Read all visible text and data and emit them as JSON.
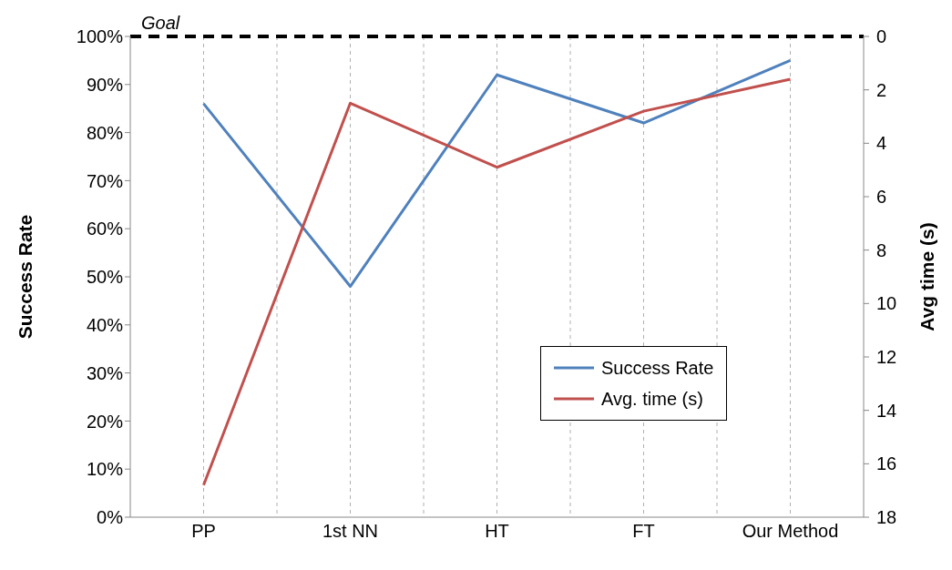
{
  "chart_data": {
    "type": "line",
    "categories": [
      "PP",
      "1st NN",
      "HT",
      "FT",
      "Our Method"
    ],
    "ylabel": "Success Rate",
    "y2label": "Avg time (s)",
    "series": [
      {
        "name": "Success Rate",
        "color": "#4f81bd",
        "values": [
          86,
          48,
          92,
          82,
          95
        ]
      },
      {
        "name": "Avg. time (s)",
        "color": "#c0504d",
        "values": [
          16.8,
          2.5,
          4.9,
          2.8,
          1.6
        ],
        "axis": "y2"
      }
    ],
    "ylim": [
      0,
      100
    ],
    "yticks": [
      {
        "value": 0,
        "label": "0%"
      },
      {
        "value": 10,
        "label": "10%"
      },
      {
        "value": 20,
        "label": "20%"
      },
      {
        "value": 30,
        "label": "30%"
      },
      {
        "value": 40,
        "label": "40%"
      },
      {
        "value": 50,
        "label": "50%"
      },
      {
        "value": 60,
        "label": "60%"
      },
      {
        "value": 70,
        "label": "70%"
      },
      {
        "value": 80,
        "label": "80%"
      },
      {
        "value": 90,
        "label": "90%"
      },
      {
        "value": 100,
        "label": "100%"
      }
    ],
    "y2lim": [
      18,
      0
    ],
    "y2ticks": [
      0,
      2,
      4,
      6,
      8,
      10,
      12,
      14,
      16,
      18
    ],
    "ref_lines": [
      {
        "axis": "y",
        "value": 100,
        "label": "Goal",
        "color": "#000000",
        "line_style": "dashed"
      }
    ],
    "grid": "x",
    "legend": "bottom right",
    "marker": "none",
    "line_style": "solid"
  }
}
